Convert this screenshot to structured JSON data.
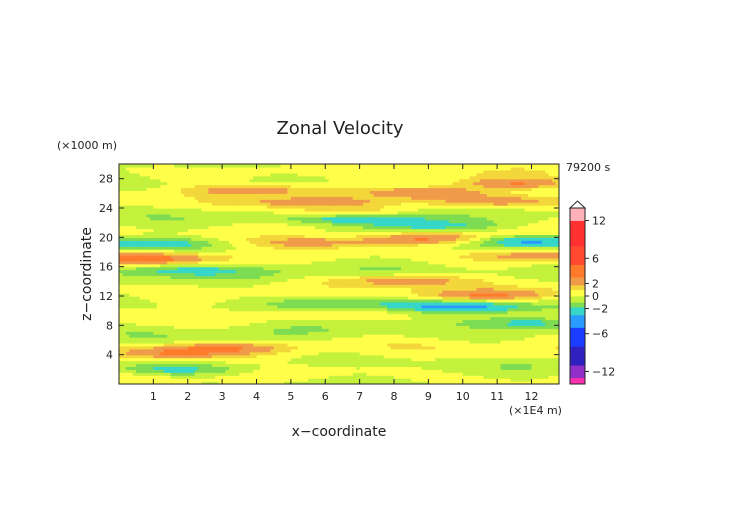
{
  "chart_data": {
    "type": "heatmap",
    "title": "Zonal Velocity",
    "xlabel": "x−coordinate",
    "ylabel": "z−coordinate",
    "x_unit": "(×1E4 m)",
    "y_unit": "(×1000 m)",
    "time_label": "79200 s",
    "xlim": [
      0,
      12.8
    ],
    "ylim": [
      0,
      30
    ],
    "x_ticks": [
      "1",
      "2",
      "3",
      "4",
      "5",
      "6",
      "7",
      "8",
      "9",
      "10",
      "11",
      "12"
    ],
    "y_ticks": [
      "4",
      "8",
      "12",
      "16",
      "20",
      "24",
      "28"
    ],
    "colorbar": {
      "range": [
        -14,
        14
      ],
      "ticks": [
        "12",
        "6",
        "2",
        "0",
        "−2",
        "−6",
        "−12"
      ],
      "tick_values": [
        12,
        6,
        2,
        0,
        -2,
        -6,
        -12
      ]
    },
    "field": {
      "features": [
        {
          "sign": 1,
          "x": 5.8,
          "z": 24.8,
          "amp": 3
        },
        {
          "sign": 1,
          "x": 9.3,
          "z": 26.2,
          "amp": 3
        },
        {
          "sign": 1,
          "x": 11.6,
          "z": 27.4,
          "amp": 3
        },
        {
          "sign": 1,
          "x": 6.5,
          "z": 23.5,
          "amp": 2.5
        },
        {
          "sign": -1,
          "x": 7.2,
          "z": 22.6,
          "amp": 3
        },
        {
          "sign": -1,
          "x": 9.0,
          "z": 21.6,
          "amp": 3
        },
        {
          "sign": -1,
          "x": 11.8,
          "z": 19.6,
          "amp": 3
        },
        {
          "sign": -1,
          "x": 0.6,
          "z": 19.2,
          "amp": 3
        },
        {
          "sign": 1,
          "x": 9.0,
          "z": 19.8,
          "amp": 3
        },
        {
          "sign": 1,
          "x": 0.9,
          "z": 17.2,
          "amp": 3
        },
        {
          "sign": 1,
          "x": 5.6,
          "z": 19.4,
          "amp": 2.5
        },
        {
          "sign": 1,
          "x": 12.2,
          "z": 17.6,
          "amp": 3
        },
        {
          "sign": 1,
          "x": 8.5,
          "z": 14.2,
          "amp": 2.5
        },
        {
          "sign": 1,
          "x": 10.8,
          "z": 25.0,
          "amp": 2.5
        },
        {
          "sign": -1,
          "x": 9.9,
          "z": 10.6,
          "amp": 3
        },
        {
          "sign": -1,
          "x": 12.0,
          "z": 8.4,
          "amp": 2.5
        },
        {
          "sign": -1,
          "x": 6.4,
          "z": 10.9,
          "amp": 2
        },
        {
          "sign": 1,
          "x": 10.6,
          "z": 12.2,
          "amp": 2.5
        },
        {
          "sign": 1,
          "x": 2.8,
          "z": 5.0,
          "amp": 2.5
        },
        {
          "sign": 1,
          "x": 1.4,
          "z": 4.2,
          "amp": 2.5
        },
        {
          "sign": -1,
          "x": 1.5,
          "z": 2.0,
          "amp": 2
        },
        {
          "sign": -1,
          "x": 1.9,
          "z": 15.6,
          "amp": 2
        },
        {
          "sign": 1,
          "x": 3.8,
          "z": 26.5,
          "amp": 2.5
        }
      ]
    }
  }
}
